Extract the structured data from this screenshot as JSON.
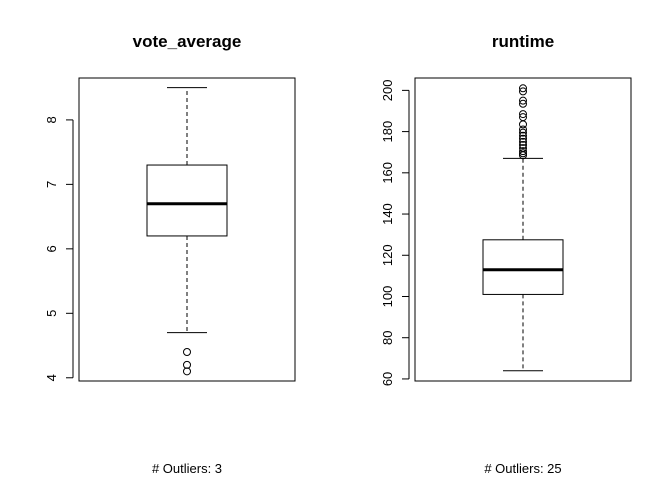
{
  "chart_data": [
    {
      "type": "boxplot",
      "title": "vote_average",
      "ylim": [
        3.95,
        8.65
      ],
      "yticks": [
        4,
        5,
        6,
        7,
        8
      ],
      "box": {
        "whisker_low": 4.7,
        "q1": 6.2,
        "median": 6.7,
        "q3": 7.3,
        "whisker_high": 8.5
      },
      "outliers": [
        4.4,
        4.2,
        4.1
      ],
      "caption": "# Outliers:  3",
      "grid": false
    },
    {
      "type": "boxplot",
      "title": "runtime",
      "ylim": [
        59,
        206
      ],
      "yticks": [
        60,
        80,
        100,
        120,
        140,
        160,
        180,
        200
      ],
      "box": {
        "whisker_low": 64,
        "q1": 101,
        "median": 113,
        "q3": 127.5,
        "whisker_high": 167
      },
      "outliers": [
        168.5,
        169.5,
        170.5,
        172,
        173.5,
        175,
        176.5,
        178,
        179.5,
        181,
        183.5,
        187,
        188.5,
        193.5,
        195,
        199.5,
        201
      ],
      "caption": "# Outliers:  25",
      "grid": false
    }
  ]
}
